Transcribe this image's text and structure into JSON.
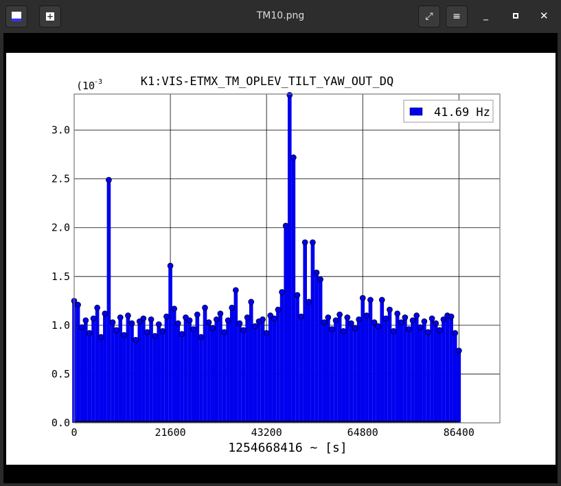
{
  "window": {
    "title": "TM10.png"
  },
  "chart_data": {
    "type": "stem",
    "title": "K1:VIS-ETMX_TM_OPLEV_TILT_YAW_OUT_DQ",
    "y_multiplier": {
      "base": "(10",
      "exponent": "-3"
    },
    "xlabel": "1254668416 ~ [s]",
    "x": [
      0,
      864,
      1728,
      2592,
      3456,
      4320,
      5184,
      6048,
      6912,
      7776,
      8640,
      9504,
      10368,
      11232,
      12096,
      12960,
      13824,
      14688,
      15552,
      16416,
      17280,
      18144,
      19008,
      19872,
      20736,
      21600,
      22464,
      23328,
      24192,
      25056,
      25920,
      26784,
      27648,
      28512,
      29376,
      30240,
      31104,
      31968,
      32832,
      33696,
      34560,
      35424,
      36288,
      37152,
      38016,
      38880,
      39744,
      40608,
      41472,
      42336,
      43200,
      44064,
      44928,
      45792,
      46656,
      47520,
      48384,
      49248,
      50112,
      50976,
      51840,
      52704,
      53568,
      54432,
      55296,
      56160,
      57024,
      57888,
      58752,
      59616,
      60480,
      61344,
      62208,
      63072,
      63936,
      64800,
      65664,
      66528,
      67392,
      68256,
      69120,
      69984,
      70848,
      71712,
      72576,
      73440,
      74304,
      75168,
      76032,
      76896,
      77760,
      78624,
      79488,
      80352,
      81216,
      82080,
      82944,
      83808,
      84672,
      85536,
      86400
    ],
    "series": [
      {
        "name": "41.69 Hz",
        "color": "#0000ee",
        "values": [
          1.25,
          1.21,
          0.98,
          1.05,
          0.92,
          1.07,
          1.18,
          0.88,
          1.12,
          2.49,
          1.03,
          0.95,
          1.08,
          0.9,
          1.1,
          1.02,
          0.85,
          1.04,
          1.07,
          0.93,
          1.06,
          0.89,
          1.01,
          0.94,
          1.09,
          1.61,
          1.17,
          1.02,
          0.91,
          1.08,
          1.05,
          0.96,
          1.11,
          0.88,
          1.18,
          1.03,
          0.97,
          1.06,
          1.12,
          0.93,
          1.05,
          1.18,
          1.36,
          1.02,
          0.95,
          1.08,
          1.24,
          0.99,
          1.04,
          1.06,
          0.92,
          1.1,
          1.07,
          1.16,
          1.34,
          2.02,
          3.36,
          2.72,
          1.31,
          1.09,
          1.85,
          1.24,
          1.85,
          1.54,
          1.47,
          1.03,
          1.08,
          0.96,
          1.05,
          1.11,
          0.94,
          1.08,
          1.02,
          0.97,
          1.06,
          1.28,
          1.1,
          1.26,
          1.03,
          0.99,
          1.26,
          1.07,
          1.16,
          0.94,
          1.12,
          1.03,
          1.08,
          0.96,
          1.05,
          1.1,
          0.98,
          1.04,
          0.93,
          1.07,
          1.02,
          0.95,
          1.06,
          1.1,
          1.09,
          0.92,
          0.74
        ]
      }
    ],
    "xlim": [
      0,
      95600
    ],
    "xticks": [
      0,
      21600,
      43200,
      64800,
      86400
    ],
    "ylim": [
      0,
      3.37
    ],
    "yticks": [
      {
        "value": 0,
        "label": "0.0"
      },
      0.5,
      {
        "value": 1,
        "label": "1.0"
      },
      1.5,
      {
        "value": 2,
        "label": "2.0"
      },
      2.5,
      {
        "value": 3,
        "label": "3.0"
      }
    ],
    "grid": true,
    "legend": "upper right"
  }
}
